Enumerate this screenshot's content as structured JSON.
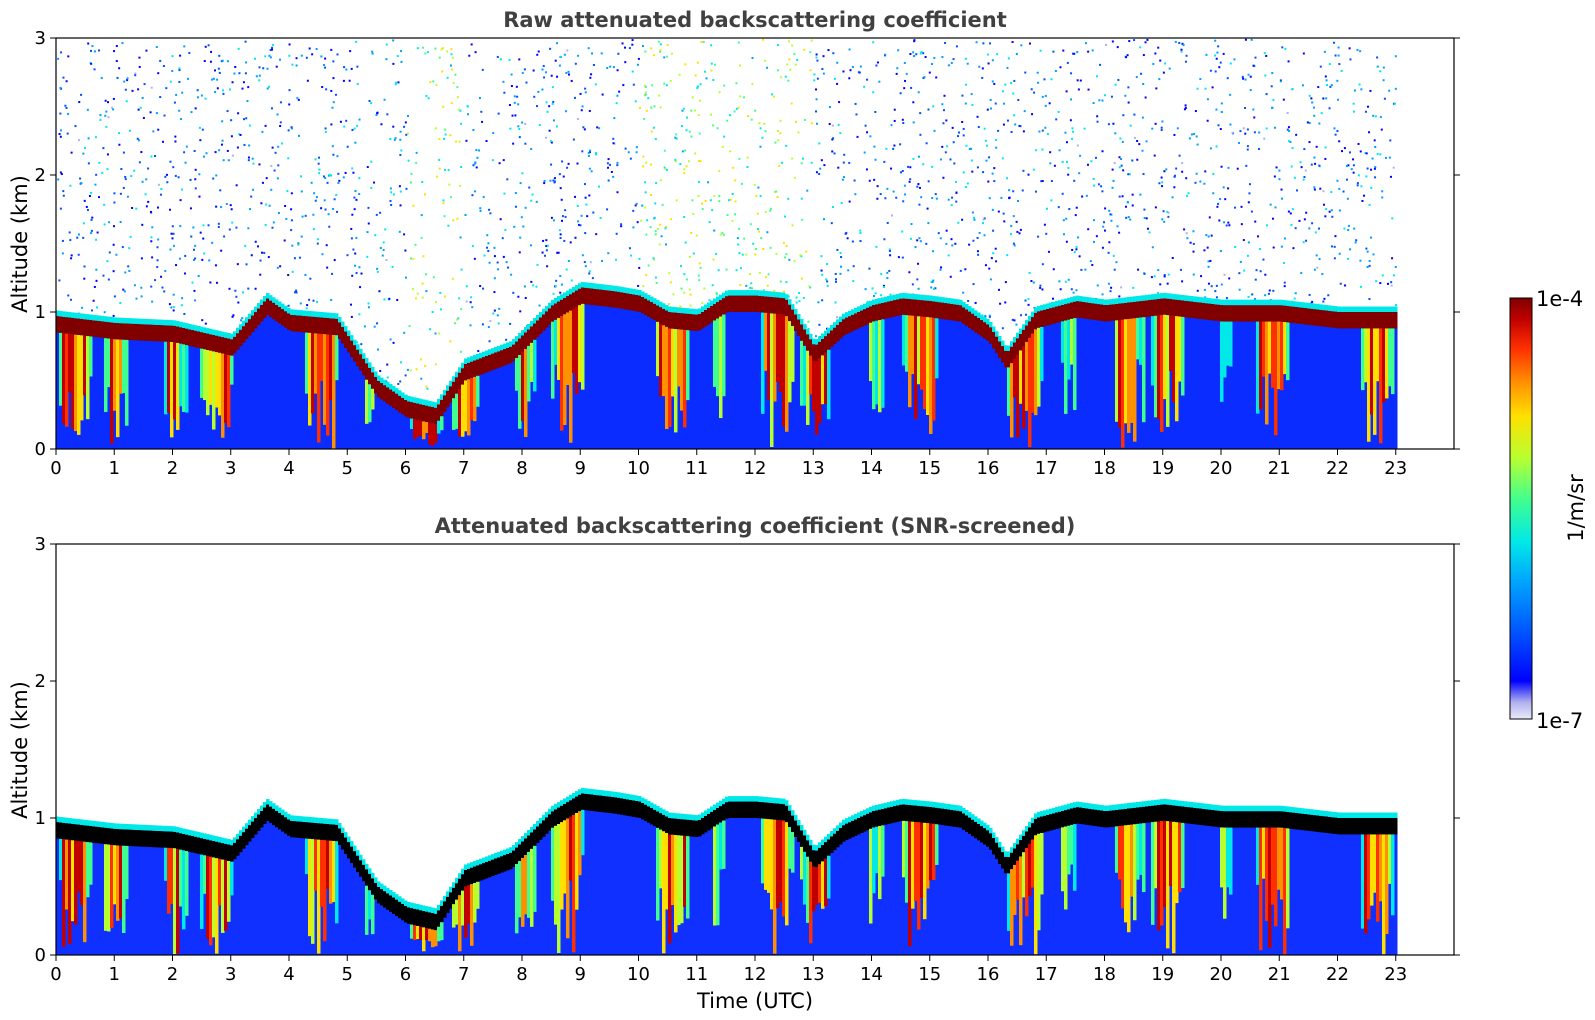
{
  "chart_data": [
    {
      "type": "heatmap",
      "title": "Raw attenuated backscattering coefficient",
      "xlabel": "",
      "ylabel": "Altitude (km)",
      "xlim": [
        0,
        24
      ],
      "ylim": [
        0,
        3
      ],
      "xticks": [
        0,
        1,
        2,
        3,
        4,
        5,
        6,
        7,
        8,
        9,
        10,
        11,
        12,
        13,
        14,
        15,
        16,
        17,
        18,
        19,
        20,
        21,
        22,
        23
      ],
      "yticks": [
        0,
        1,
        2,
        3
      ],
      "data_end_time": 23,
      "screened": false,
      "layer_top_km": [
        [
          0,
          0.97
        ],
        [
          1,
          0.92
        ],
        [
          2,
          0.9
        ],
        [
          3,
          0.8
        ],
        [
          3.6,
          1.1
        ],
        [
          4,
          0.98
        ],
        [
          4.8,
          0.95
        ],
        [
          5.5,
          0.5
        ],
        [
          6,
          0.35
        ],
        [
          6.5,
          0.3
        ],
        [
          7,
          0.62
        ],
        [
          7.8,
          0.75
        ],
        [
          8.5,
          1.05
        ],
        [
          9,
          1.18
        ],
        [
          9.6,
          1.15
        ],
        [
          10,
          1.12
        ],
        [
          10.5,
          1.0
        ],
        [
          11,
          0.98
        ],
        [
          11.5,
          1.12
        ],
        [
          12,
          1.12
        ],
        [
          12.5,
          1.1
        ],
        [
          13,
          0.75
        ],
        [
          13.5,
          0.95
        ],
        [
          14,
          1.05
        ],
        [
          14.5,
          1.1
        ],
        [
          15,
          1.08
        ],
        [
          15.5,
          1.05
        ],
        [
          16,
          0.9
        ],
        [
          16.3,
          0.7
        ],
        [
          16.8,
          1.0
        ],
        [
          17.5,
          1.08
        ],
        [
          18,
          1.05
        ],
        [
          19,
          1.1
        ],
        [
          20,
          1.05
        ],
        [
          21,
          1.05
        ],
        [
          22,
          1.0
        ],
        [
          23,
          1.0
        ]
      ]
    },
    {
      "type": "heatmap",
      "title": "Attenuated backscattering coefficient (SNR-screened)",
      "xlabel": "Time (UTC)",
      "ylabel": "Altitude (km)",
      "xlim": [
        0,
        24
      ],
      "ylim": [
        0,
        3
      ],
      "xticks": [
        0,
        1,
        2,
        3,
        4,
        5,
        6,
        7,
        8,
        9,
        10,
        11,
        12,
        13,
        14,
        15,
        16,
        17,
        18,
        19,
        20,
        21,
        22,
        23
      ],
      "yticks": [
        0,
        1,
        2,
        3
      ],
      "data_end_time": 23,
      "screened": true,
      "layer_top_km": [
        [
          0,
          0.97
        ],
        [
          1,
          0.92
        ],
        [
          2,
          0.9
        ],
        [
          3,
          0.8
        ],
        [
          3.6,
          1.1
        ],
        [
          4,
          0.98
        ],
        [
          4.8,
          0.95
        ],
        [
          5.5,
          0.5
        ],
        [
          6,
          0.35
        ],
        [
          6.5,
          0.3
        ],
        [
          7,
          0.62
        ],
        [
          7.8,
          0.75
        ],
        [
          8.5,
          1.05
        ],
        [
          9,
          1.18
        ],
        [
          9.6,
          1.15
        ],
        [
          10,
          1.12
        ],
        [
          10.5,
          1.0
        ],
        [
          11,
          0.98
        ],
        [
          11.5,
          1.12
        ],
        [
          12,
          1.12
        ],
        [
          12.5,
          1.1
        ],
        [
          13,
          0.75
        ],
        [
          13.5,
          0.95
        ],
        [
          14,
          1.05
        ],
        [
          14.5,
          1.1
        ],
        [
          15,
          1.08
        ],
        [
          15.5,
          1.05
        ],
        [
          16,
          0.9
        ],
        [
          16.3,
          0.7
        ],
        [
          16.8,
          1.0
        ],
        [
          17.5,
          1.08
        ],
        [
          18,
          1.05
        ],
        [
          19,
          1.1
        ],
        [
          20,
          1.05
        ],
        [
          21,
          1.05
        ],
        [
          22,
          1.0
        ],
        [
          23,
          1.0
        ]
      ]
    }
  ],
  "colorbar": {
    "max_label": "1e-4",
    "min_label": "1e-7",
    "unit_label": "1/m/sr",
    "colormap": "jet",
    "colors": [
      "#eaeaf8",
      "#b0b0f0",
      "#0000ff",
      "#0050ff",
      "#00a0ff",
      "#00e8e8",
      "#40ff90",
      "#b8ff30",
      "#ffe000",
      "#ff9000",
      "#ff3000",
      "#c00000",
      "#800000"
    ]
  },
  "colors": {
    "text": "#404040",
    "axis": "#000000",
    "screened_layer_core": "#000000",
    "clear_air": "#ffffff"
  }
}
